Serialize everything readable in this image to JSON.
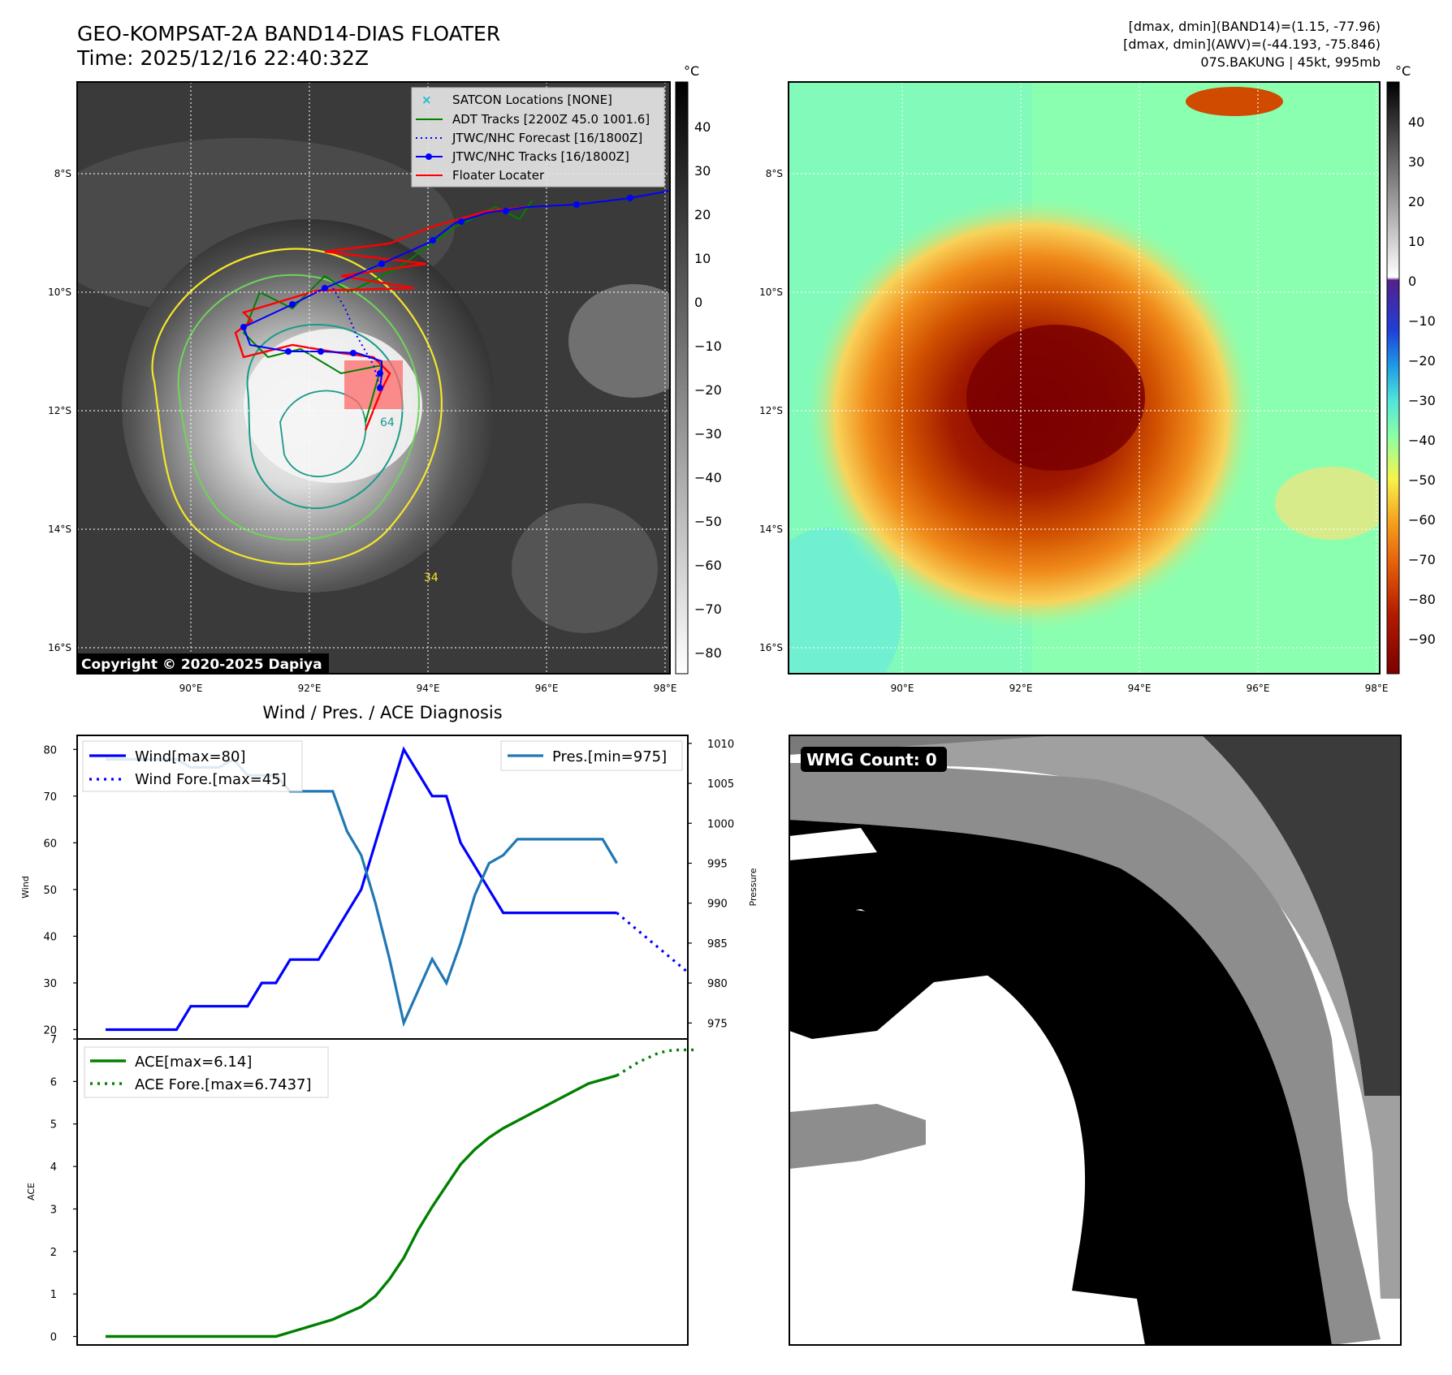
{
  "header": {
    "title": "GEO-KOMPSAT-2A BAND14-DIAS FLOATER",
    "time": "Time: 2025/12/16 22:40:32Z",
    "info_line1": "[dmax, dmin](BAND14)=(1.15, -77.96)",
    "info_line2": "[dmax, dmin](AWV)=(-44.193, -75.846)",
    "info_line3": "07S.BAKUNG | 45kt, 995mb"
  },
  "map": {
    "lat_labels": [
      "8°S",
      "10°S",
      "12°S",
      "14°S",
      "16°S"
    ],
    "lon_labels": [
      "90°E",
      "92°E",
      "94°E",
      "96°E",
      "98°E"
    ],
    "copyright": "Copyright © 2020-2025 Dapiya",
    "contour_labels": [
      "64",
      "34"
    ],
    "legend": [
      {
        "label": "SATCON Locations [NONE]",
        "color": "#17becf"
      },
      {
        "label": "ADT Tracks [2200Z 45.0 1001.6]",
        "color": "#008000"
      },
      {
        "label": "JTWC/NHC Forecast [16/1800Z]",
        "color": "#0000ff"
      },
      {
        "label": "JTWC/NHC Tracks [16/1800Z]",
        "color": "#0000ff"
      },
      {
        "label": "Floater Locater",
        "color": "#ff0000"
      }
    ]
  },
  "colorbar_gray": {
    "unit": "°C",
    "ticks": [
      "40",
      "30",
      "20",
      "10",
      "0",
      "−10",
      "−20",
      "−30",
      "−40",
      "−50",
      "−60",
      "−70",
      "−80"
    ]
  },
  "colorbar_color": {
    "unit": "°C",
    "ticks": [
      "40",
      "30",
      "20",
      "10",
      "0",
      "−10",
      "−20",
      "−30",
      "−40",
      "−50",
      "−60",
      "−70",
      "−80",
      "−90"
    ]
  },
  "wmg": {
    "label": "WMG Count: 0"
  },
  "chart_data": [
    {
      "type": "line",
      "title": "Wind / Pres. / ACE Diagnosis",
      "ylabel": "Wind",
      "ylim": [
        18,
        83
      ],
      "yticks": [
        20,
        30,
        40,
        50,
        60,
        70,
        80
      ],
      "y2label": "Pressure",
      "y2lim": [
        973,
        1011
      ],
      "y2ticks": [
        975,
        980,
        985,
        990,
        995,
        1000,
        1005,
        1010
      ],
      "xlim": [
        -2,
        41
      ],
      "series": [
        {
          "name": "Wind[max=80]",
          "axis": "left",
          "color": "#0000ff",
          "style": "solid",
          "x": [
            0,
            1,
            2,
            3,
            4,
            5,
            6,
            7,
            8,
            9,
            10,
            11,
            12,
            13,
            14,
            15,
            16,
            17,
            18,
            19,
            20,
            21,
            22,
            23,
            24,
            25,
            26,
            27,
            28,
            29,
            30,
            31,
            32,
            33,
            34,
            35,
            36
          ],
          "y": [
            20,
            20,
            20,
            20,
            20,
            20,
            25,
            25,
            25,
            25,
            25,
            30,
            30,
            35,
            35,
            35,
            40,
            45,
            50,
            60,
            70,
            80,
            75,
            70,
            70,
            60,
            55,
            50,
            45,
            45,
            45,
            45,
            45,
            45,
            45,
            45,
            45
          ]
        },
        {
          "name": "Wind Fore.[max=45]",
          "axis": "left",
          "color": "#0000ff",
          "style": "dotted",
          "x": [
            36,
            41.5
          ],
          "y": [
            45,
            31
          ]
        },
        {
          "name": "Pres.[min=975]",
          "axis": "right",
          "color": "#1f77b4",
          "style": "solid",
          "x": [
            0,
            1,
            2,
            3,
            4,
            5,
            6,
            7,
            8,
            9,
            10,
            11,
            12,
            13,
            14,
            15,
            16,
            17,
            18,
            19,
            20,
            21,
            22,
            23,
            24,
            25,
            26,
            27,
            28,
            29,
            30,
            31,
            32,
            33,
            34,
            35,
            36
          ],
          "y": [
            1008,
            1008,
            1008,
            1008,
            1008,
            1008,
            1007,
            1007,
            1007,
            1008,
            1006,
            1006,
            1006,
            1004,
            1004,
            1004,
            1004,
            999,
            996,
            990,
            983,
            975,
            979,
            983,
            980,
            985,
            991,
            995,
            996,
            998,
            998,
            998,
            998,
            998,
            998,
            998,
            995
          ]
        }
      ]
    },
    {
      "type": "line",
      "ylabel": "ACE",
      "ylim": [
        -0.2,
        7
      ],
      "yticks": [
        0,
        1,
        2,
        3,
        4,
        5,
        6,
        7
      ],
      "xlim": [
        -2,
        41
      ],
      "series": [
        {
          "name": "ACE[max=6.14]",
          "color": "#008000",
          "style": "solid",
          "x": [
            0,
            4,
            8,
            12,
            14,
            16,
            17,
            18,
            19,
            20,
            21,
            22,
            23,
            24,
            25,
            26,
            27,
            28,
            30,
            32,
            34,
            36
          ],
          "y": [
            0,
            0,
            0,
            0,
            0.2,
            0.4,
            0.55,
            0.7,
            0.95,
            1.35,
            1.85,
            2.5,
            3.05,
            3.55,
            4.05,
            4.4,
            4.68,
            4.9,
            5.25,
            5.6,
            5.95,
            6.14
          ]
        },
        {
          "name": "ACE Fore.[max=6.7437]",
          "color": "#008000",
          "style": "dotted",
          "x": [
            36,
            37.5,
            39,
            40,
            41.5
          ],
          "y": [
            6.14,
            6.45,
            6.68,
            6.74,
            6.7437
          ]
        }
      ]
    }
  ]
}
